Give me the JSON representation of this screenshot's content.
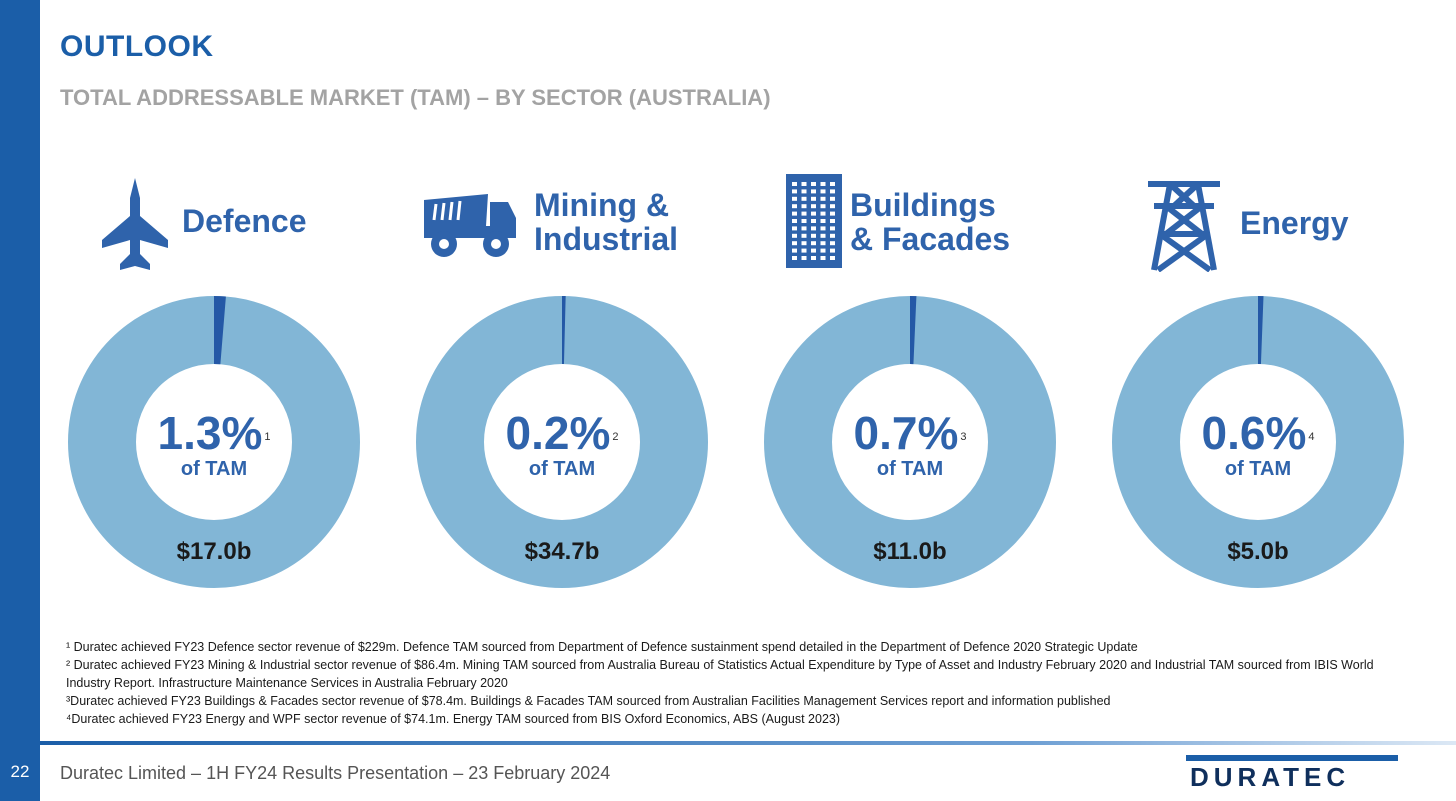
{
  "page": {
    "number": "22",
    "title": "OUTLOOK",
    "subtitle": "TOTAL ADDRESSABLE MARKET (TAM) – BY SECTOR (AUSTRALIA)"
  },
  "colors": {
    "brand_blue": "#1b5ea8",
    "donut_fill": "#82b6d6",
    "slice_fill": "#2458a6",
    "subtitle_grey": "#a3a3a3"
  },
  "sectors": [
    {
      "name": "Defence",
      "icon": "fighter-jet-icon",
      "share": "1.3%",
      "sup": "1",
      "of_tam": "of TAM",
      "tam": "$17.0b"
    },
    {
      "name": "Mining &\nIndustrial",
      "icon": "dump-truck-icon",
      "share": "0.2%",
      "sup": "2",
      "of_tam": "of TAM",
      "tam": "$34.7b"
    },
    {
      "name": "Buildings\n& Facades",
      "icon": "building-icon",
      "share": "0.7%",
      "sup": "3",
      "of_tam": "of TAM",
      "tam": "$11.0b"
    },
    {
      "name": "Energy",
      "icon": "transmission-tower-icon",
      "share": "0.6%",
      "sup": "4",
      "of_tam": "of TAM",
      "tam": "$5.0b"
    }
  ],
  "chart_data": {
    "type": "pie",
    "categories": [
      "Defence",
      "Mining & Industrial",
      "Buildings & Facades",
      "Energy"
    ],
    "series": [
      {
        "values": [
          1.3,
          0.2,
          0.7,
          0.6
        ]
      }
    ],
    "tam_billions": [
      17.0,
      34.7,
      11.0,
      5.0
    ]
  },
  "footnotes": [
    "¹ Duratec achieved FY23 Defence sector revenue of $229m. Defence TAM sourced from Department of Defence sustainment spend detailed in the Department of Defence 2020 Strategic Update",
    "² Duratec achieved FY23 Mining & Industrial sector revenue of $86.4m. Mining TAM sourced from Australia Bureau of Statistics Actual Expenditure by Type of Asset and Industry February 2020 and Industrial TAM sourced from IBIS World Industry Report. Infrastructure Maintenance Services in Australia February 2020",
    "³Duratec achieved FY23 Buildings & Facades sector revenue of $78.4m. Buildings & Facades TAM sourced from Australian Facilities Management Services report and information published",
    "⁴Duratec achieved FY23 Energy and WPF sector revenue of $74.1m. Energy TAM sourced from BIS Oxford Economics, ABS (August 2023)"
  ],
  "footer": {
    "text": "Duratec Limited – 1H FY24 Results Presentation – 23 February 2024",
    "logo_text": "DURATEC"
  }
}
